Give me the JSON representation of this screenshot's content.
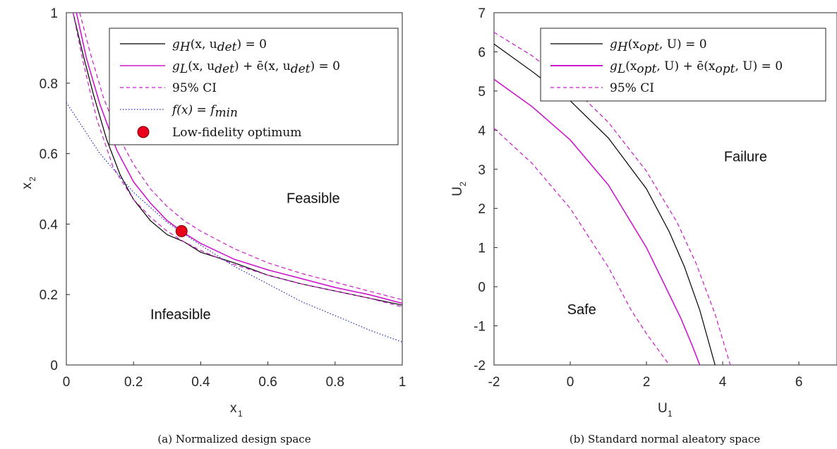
{
  "chart_data": [
    {
      "type": "line",
      "caption": "(a) Normalized design space",
      "xlabel": "x",
      "xlabel_sub": "1",
      "ylabel": "x",
      "ylabel_sub": "2",
      "xlim": [
        0,
        1
      ],
      "ylim": [
        0,
        1
      ],
      "xticks": [
        0,
        0.2,
        0.4,
        0.6,
        0.8,
        1
      ],
      "xtick_labels": [
        "0",
        "0.2",
        "0.4",
        "0.6",
        "0.8",
        "1"
      ],
      "yticks": [
        0,
        0.2,
        0.4,
        0.6,
        0.8,
        1
      ],
      "ytick_labels": [
        "0",
        "0.2",
        "0.4",
        "0.6",
        "0.8",
        "1"
      ],
      "grid": false,
      "legend_position": "top-right",
      "annotations": [
        {
          "text": "Feasible",
          "x": 0.735,
          "y": 0.46
        },
        {
          "text": "Infeasible",
          "x": 0.34,
          "y": 0.13
        }
      ],
      "series": [
        {
          "name": "g_H(x, u_det) = 0",
          "color": "#000000",
          "style": "solid",
          "x": [
            0.02,
            0.05,
            0.08,
            0.12,
            0.16,
            0.2,
            0.25,
            0.3,
            0.35,
            0.4,
            0.5,
            0.6,
            0.7,
            0.8,
            0.9,
            1.0
          ],
          "y": [
            1.0,
            0.88,
            0.77,
            0.64,
            0.54,
            0.47,
            0.41,
            0.37,
            0.35,
            0.32,
            0.29,
            0.255,
            0.23,
            0.21,
            0.19,
            0.17
          ]
        },
        {
          "name": "g_L(x, u_det) + ē(x, u_det) = 0",
          "color": "#cc1acc",
          "style": "solid",
          "x": [
            0.03,
            0.06,
            0.1,
            0.15,
            0.2,
            0.25,
            0.3,
            0.35,
            0.4,
            0.5,
            0.6,
            0.7,
            0.8,
            0.9,
            1.0
          ],
          "y": [
            1.0,
            0.87,
            0.74,
            0.61,
            0.52,
            0.46,
            0.41,
            0.375,
            0.345,
            0.3,
            0.27,
            0.245,
            0.22,
            0.2,
            0.175
          ]
        },
        {
          "name": "95% CI",
          "color": "#cc1acc",
          "style": "dashed",
          "x": [
            0.04,
            0.07,
            0.11,
            0.16,
            0.2,
            0.25,
            0.3,
            0.35,
            0.4,
            0.5,
            0.6,
            0.7,
            0.8,
            0.9,
            1.0
          ],
          "y": [
            1.0,
            0.89,
            0.76,
            0.64,
            0.57,
            0.5,
            0.45,
            0.41,
            0.38,
            0.33,
            0.29,
            0.26,
            0.235,
            0.21,
            0.185
          ]
        },
        {
          "name": "",
          "color": "#cc1acc",
          "style": "dashed",
          "x": [
            0.02,
            0.05,
            0.09,
            0.14,
            0.2,
            0.25,
            0.3,
            0.35,
            0.4,
            0.5,
            0.6,
            0.7,
            0.8,
            0.9,
            1.0
          ],
          "y": [
            1.0,
            0.86,
            0.7,
            0.56,
            0.47,
            0.42,
            0.38,
            0.35,
            0.325,
            0.285,
            0.255,
            0.23,
            0.21,
            0.19,
            0.165
          ]
        },
        {
          "name": "f(x) = f_min",
          "color": "#1f2bbd",
          "style": "dotted",
          "x": [
            0.0,
            0.1,
            0.2,
            0.3,
            0.4,
            0.5,
            0.6,
            0.7,
            0.8,
            0.9,
            1.0
          ],
          "y": [
            0.745,
            0.6,
            0.49,
            0.405,
            0.34,
            0.28,
            0.23,
            0.18,
            0.14,
            0.1,
            0.065
          ]
        }
      ],
      "markers": [
        {
          "name": "Low-fidelity optimum",
          "x": 0.343,
          "y": 0.38,
          "color": "#e8001c"
        }
      ]
    },
    {
      "type": "line",
      "caption": "(b) Standard normal aleatory space",
      "xlabel": "U",
      "xlabel_sub": "1",
      "ylabel": "U",
      "ylabel_sub": "2",
      "xlim": [
        -2,
        7
      ],
      "ylim": [
        -2,
        7
      ],
      "xticks": [
        -2,
        0,
        2,
        4,
        6
      ],
      "xtick_labels": [
        "-2",
        "0",
        "2",
        "4",
        "6"
      ],
      "yticks": [
        -2,
        -1,
        0,
        1,
        2,
        3,
        4,
        5,
        6,
        7
      ],
      "ytick_labels": [
        "-2",
        "-1",
        "0",
        "1",
        "2",
        "3",
        "4",
        "5",
        "6",
        "7"
      ],
      "grid": false,
      "legend_position": "top-right",
      "annotations": [
        {
          "text": "Failure",
          "x": 4.6,
          "y": 3.2
        },
        {
          "text": "Safe",
          "x": 0.3,
          "y": -0.7
        }
      ],
      "series": [
        {
          "name": "g_H(x_opt, U) = 0",
          "color": "#000000",
          "style": "solid",
          "x": [
            -2.0,
            -1.0,
            0.0,
            1.0,
            2.0,
            2.6,
            3.0,
            3.4,
            3.8
          ],
          "y": [
            6.2,
            5.5,
            4.75,
            3.8,
            2.5,
            1.4,
            0.5,
            -0.6,
            -2.0
          ]
        },
        {
          "name": "g_L(x_opt, U) + ē(x_opt, U) = 0",
          "color": "#cc1acc",
          "style": "solid",
          "x": [
            -2.0,
            -1.0,
            0.0,
            1.0,
            2.0,
            2.5,
            2.9,
            3.2,
            3.4
          ],
          "y": [
            5.3,
            4.6,
            3.75,
            2.6,
            1.0,
            0.0,
            -0.8,
            -1.5,
            -2.0
          ]
        },
        {
          "name": "95% CI",
          "color": "#cc1acc",
          "style": "dashed",
          "x": [
            -2.0,
            -1.0,
            0.0,
            1.0,
            2.0,
            2.8,
            3.3,
            3.8,
            4.2
          ],
          "y": [
            6.5,
            5.9,
            5.15,
            4.2,
            2.95,
            1.65,
            0.6,
            -0.7,
            -2.0
          ]
        },
        {
          "name": "",
          "color": "#cc1acc",
          "style": "dashed",
          "x": [
            -2.0,
            -1.0,
            0.0,
            1.0,
            1.6,
            2.0,
            2.3,
            2.6
          ],
          "y": [
            4.05,
            3.15,
            2.0,
            0.5,
            -0.6,
            -1.2,
            -1.6,
            -2.0
          ]
        }
      ],
      "markers": []
    }
  ],
  "legend_a": {
    "row1_lhs": "g",
    "row1_sub": "H",
    "row1_rest": "(x, u",
    "row1_sub2": "det",
    "row1_end": ") = 0",
    "row2_lhs": "g",
    "row2_sub": "L",
    "row2_rest": "(x, u",
    "row2_sub2": "det",
    "row2_mid": ") + ē(x, u",
    "row2_sub3": "det",
    "row2_end": ") = 0",
    "row3": "95% CI",
    "row4_lhs": "f(x) = f",
    "row4_sub": "min",
    "row5": "Low-fidelity optimum"
  },
  "legend_b": {
    "row1_lhs": "g",
    "row1_sub": "H",
    "row1_rest": "(x",
    "row1_sub2": "opt",
    "row1_end": ", U) = 0",
    "row2_lhs": "g",
    "row2_sub": "L",
    "row2_rest": "(x",
    "row2_sub2": "opt",
    "row2_mid": ", U) + ē(x",
    "row2_sub3": "opt",
    "row2_end": ", U) = 0",
    "row3": "95% CI"
  }
}
